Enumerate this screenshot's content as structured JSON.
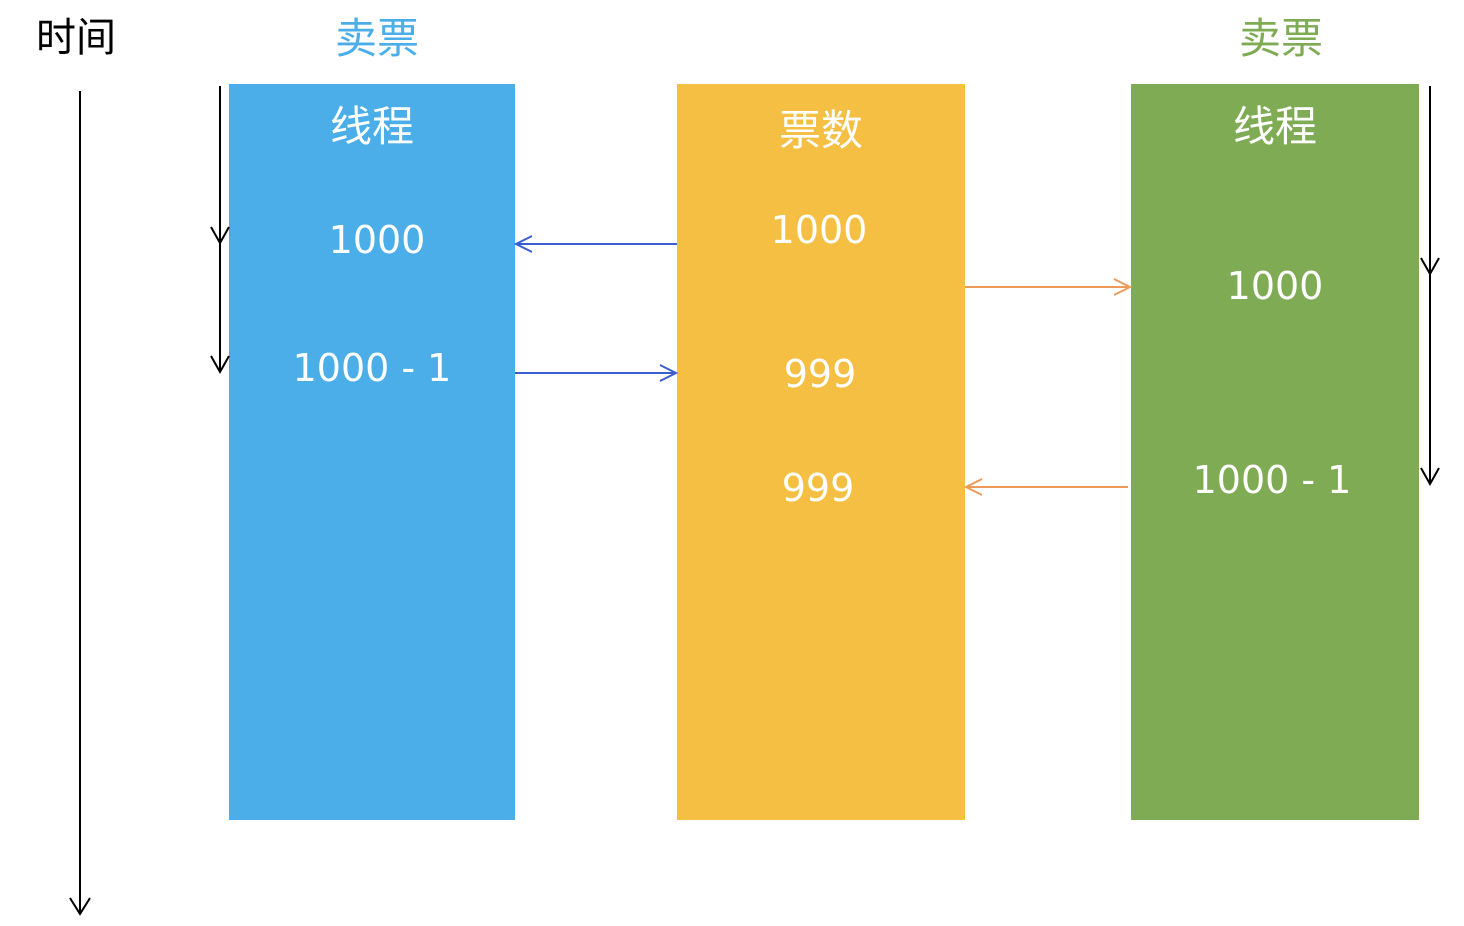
{
  "time_label": "时间",
  "colors": {
    "thread_a": "#4baee8",
    "tickets": "#f4bf42",
    "thread_b": "#7fab54",
    "title_a": "#4baee8",
    "title_b": "#7fab54",
    "arrow_a": "#3a5fd0",
    "arrow_b": "#ee9a5a"
  },
  "thread_a": {
    "title": "卖票",
    "box_label": "线程",
    "values": [
      "1000",
      "1000 - 1"
    ]
  },
  "tickets": {
    "box_label": "票数",
    "values": [
      "1000",
      "999",
      "999"
    ]
  },
  "thread_b": {
    "title": "卖票",
    "box_label": "线程",
    "values": [
      "1000",
      "1000 - 1"
    ]
  }
}
